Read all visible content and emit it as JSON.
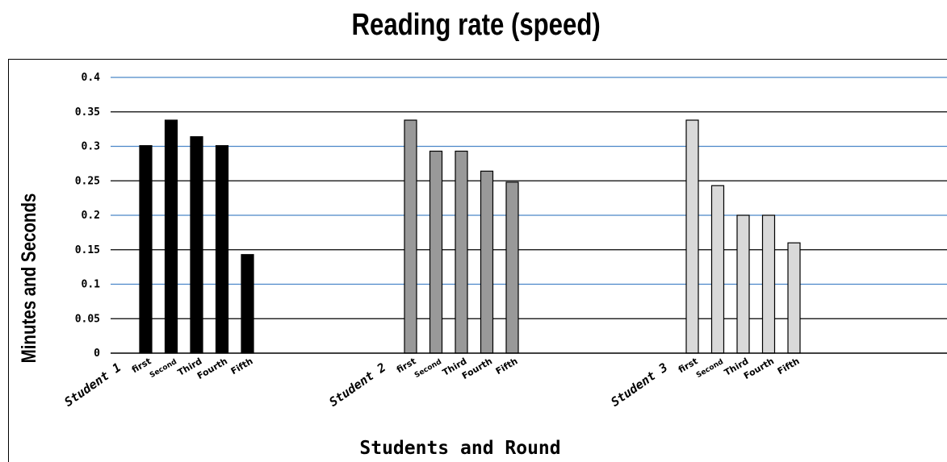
{
  "chart_data": {
    "type": "bar",
    "title": "Reading rate (speed)",
    "xlabel": "Students and Round",
    "ylabel": "Minutes and Seconds",
    "ylim": [
      0,
      0.4
    ],
    "yticks": [
      "0",
      "0.05",
      "0.1",
      "0.15",
      "0.2",
      "0.25",
      "0.3",
      "0.35",
      "0.4"
    ],
    "grid": true,
    "groups": [
      {
        "name": "Student 1",
        "color": "#000000",
        "categories": [
          "first",
          "Second",
          "Third",
          "Fourth",
          "Fifth"
        ],
        "values": [
          0.301,
          0.338,
          0.314,
          0.301,
          0.143
        ]
      },
      {
        "name": "Student 2",
        "color": "#999999",
        "categories": [
          "first",
          "Second",
          "Third",
          "Fourth",
          "Fifth"
        ],
        "values": [
          0.338,
          0.293,
          0.293,
          0.264,
          0.248
        ]
      },
      {
        "name": "Student 3",
        "color": "#d9d9d9",
        "categories": [
          "first",
          "Second",
          "Third",
          "Fourth",
          "Fifth"
        ],
        "values": [
          0.338,
          0.243,
          0.2,
          0.2,
          0.16
        ]
      }
    ]
  }
}
